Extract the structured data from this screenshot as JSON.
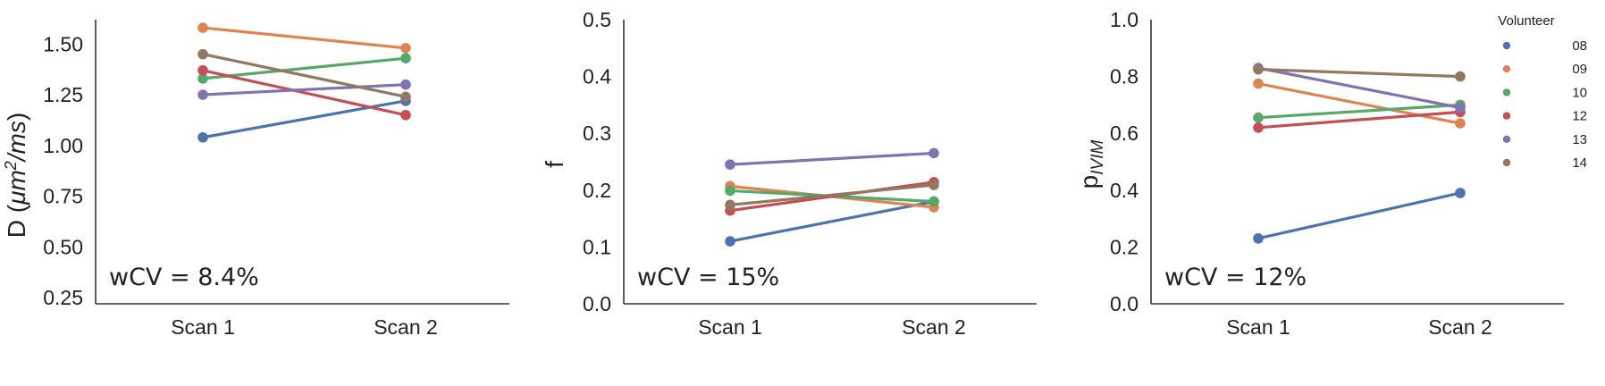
{
  "colors": {
    "08": "#4c72b0",
    "09": "#dd8452",
    "10": "#55a868",
    "12": "#c44e52",
    "13": "#8172b3",
    "14": "#937860"
  },
  "legend": {
    "title": "Volunteer",
    "entries": [
      "08",
      "09",
      "10",
      "12",
      "13",
      "14"
    ]
  },
  "chart_data": [
    {
      "type": "line",
      "categories": [
        "Scan 1",
        "Scan 2"
      ],
      "ylabel": "D (μm²/ms)",
      "ylim": [
        0.22,
        1.62
      ],
      "yticks": [
        "0.25",
        "0.50",
        "0.75",
        "1.00",
        "1.25",
        "1.50"
      ],
      "ytick_values": [
        0.25,
        0.5,
        0.75,
        1.0,
        1.25,
        1.5
      ],
      "annotation": "wCV = 8.4%",
      "series": [
        {
          "name": "08",
          "values": [
            1.04,
            1.22
          ]
        },
        {
          "name": "09",
          "values": [
            1.58,
            1.48
          ]
        },
        {
          "name": "10",
          "values": [
            1.33,
            1.43
          ]
        },
        {
          "name": "12",
          "values": [
            1.37,
            1.15
          ]
        },
        {
          "name": "13",
          "values": [
            1.25,
            1.3
          ]
        },
        {
          "name": "14",
          "values": [
            1.45,
            1.24
          ]
        }
      ]
    },
    {
      "type": "line",
      "categories": [
        "Scan 1",
        "Scan 2"
      ],
      "ylabel": "f",
      "ylim": [
        0.0,
        0.5
      ],
      "yticks": [
        "0.0",
        "0.1",
        "0.2",
        "0.3",
        "0.4",
        "0.5"
      ],
      "ytick_values": [
        0.0,
        0.1,
        0.2,
        0.3,
        0.4,
        0.5
      ],
      "annotation": "wCV = 15%",
      "series": [
        {
          "name": "08",
          "values": [
            0.11,
            0.18
          ]
        },
        {
          "name": "09",
          "values": [
            0.207,
            0.17
          ]
        },
        {
          "name": "10",
          "values": [
            0.199,
            0.18
          ]
        },
        {
          "name": "12",
          "values": [
            0.164,
            0.214
          ]
        },
        {
          "name": "13",
          "values": [
            0.245,
            0.265
          ]
        },
        {
          "name": "14",
          "values": [
            0.174,
            0.209
          ]
        }
      ]
    },
    {
      "type": "line",
      "categories": [
        "Scan 1",
        "Scan 2"
      ],
      "ylabel": "pIVIM",
      "ylim": [
        0.0,
        1.0
      ],
      "yticks": [
        "0.0",
        "0.2",
        "0.4",
        "0.6",
        "0.8",
        "1.0"
      ],
      "ytick_values": [
        0.0,
        0.2,
        0.4,
        0.6,
        0.8,
        1.0
      ],
      "annotation": "wCV = 12%",
      "series": [
        {
          "name": "08",
          "values": [
            0.23,
            0.39
          ]
        },
        {
          "name": "09",
          "values": [
            0.775,
            0.635
          ]
        },
        {
          "name": "10",
          "values": [
            0.655,
            0.7
          ]
        },
        {
          "name": "12",
          "values": [
            0.62,
            0.675
          ]
        },
        {
          "name": "13",
          "values": [
            0.83,
            0.69
          ]
        },
        {
          "name": "14",
          "values": [
            0.825,
            0.8
          ]
        }
      ]
    }
  ]
}
